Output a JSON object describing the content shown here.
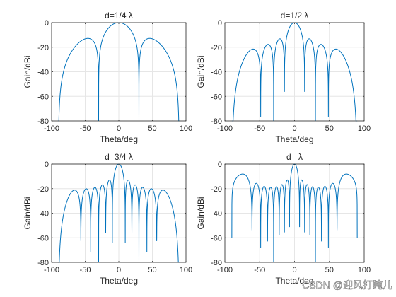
{
  "watermark": "CSDN @迎风打盹儿",
  "colors": {
    "line": "#0072bd",
    "grid": "#e6e6e6",
    "axis": "#262626"
  },
  "chart_data": [
    {
      "type": "line",
      "title": "d=1/4 λ",
      "xlabel": "Theta/deg",
      "ylabel": "Gain/dBi",
      "xlim": [
        -100,
        100
      ],
      "ylim": [
        -80,
        0
      ],
      "xticks": [
        "-100",
        "-50",
        "0",
        "50",
        "100"
      ],
      "yticks": [
        "0",
        "-20",
        "-40",
        "-60",
        "-80"
      ],
      "grid": true,
      "spacing": 0.25,
      "elements": 8,
      "theta_range": [
        -90,
        90
      ]
    },
    {
      "type": "line",
      "title": "d=1/2 λ",
      "xlabel": "Theta/deg",
      "ylabel": "Gain/dBi",
      "xlim": [
        -100,
        100
      ],
      "ylim": [
        -80,
        0
      ],
      "xticks": [
        "-100",
        "-50",
        "0",
        "50",
        "100"
      ],
      "yticks": [
        "0",
        "-20",
        "-40",
        "-60",
        "-80"
      ],
      "grid": true,
      "spacing": 0.5,
      "elements": 8,
      "theta_range": [
        -90,
        90
      ]
    },
    {
      "type": "line",
      "title": "d=3/4 λ",
      "xlabel": "Theta/deg",
      "ylabel": "Gain/dBi",
      "xlim": [
        -100,
        100
      ],
      "ylim": [
        -80,
        0
      ],
      "xticks": [
        "-100",
        "-50",
        "0",
        "50",
        "100"
      ],
      "yticks": [
        "0",
        "-20",
        "-40",
        "-60",
        "-80"
      ],
      "grid": true,
      "spacing": 0.75,
      "elements": 8,
      "theta_range": [
        -90,
        90
      ]
    },
    {
      "type": "line",
      "title": "d= λ",
      "xlabel": "Theta/deg",
      "ylabel": "Gain/dBi",
      "xlim": [
        -100,
        100
      ],
      "ylim": [
        -80,
        0
      ],
      "xticks": [
        "-100",
        "-50",
        "0",
        "50",
        "100"
      ],
      "yticks": [
        "0",
        "-20",
        "-40",
        "-60",
        "-80"
      ],
      "grid": true,
      "spacing": 1.0,
      "elements": 8,
      "theta_range": [
        -90,
        90
      ]
    }
  ]
}
